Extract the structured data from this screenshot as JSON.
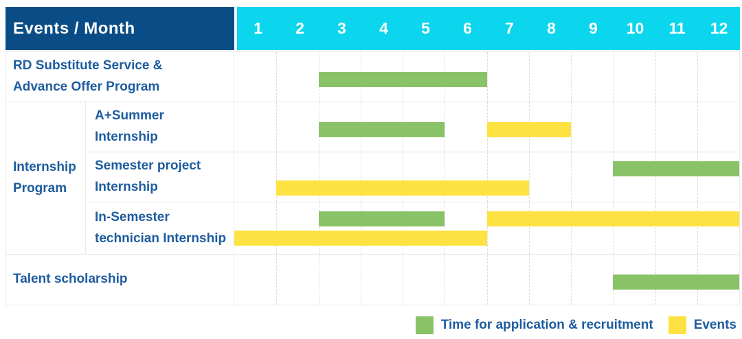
{
  "header": {
    "title": "Events / Month"
  },
  "chart_data": {
    "type": "gantt",
    "title": "Events / Month",
    "months": [
      "1",
      "2",
      "3",
      "4",
      "5",
      "6",
      "7",
      "8",
      "9",
      "10",
      "11",
      "12"
    ],
    "series_colors": {
      "application": "#8ac268",
      "events": "#fde242"
    },
    "group": {
      "label": "Internship Program",
      "label_lines": [
        "Internship",
        "Program"
      ],
      "row_indexes": [
        1,
        2,
        3
      ]
    },
    "rows": [
      {
        "label": "RD Substitute Service & Advance Offer Program",
        "label_lines": [
          "RD Substitute Service &",
          "Advance Offer Program"
        ],
        "lines": 1,
        "bars": [
          {
            "series": "application",
            "start_month": 3,
            "end_month": 6,
            "line": 0
          }
        ]
      },
      {
        "label": "A+Summer Internship",
        "label_lines": [
          "A+Summer",
          "Internship"
        ],
        "lines": 1,
        "bars": [
          {
            "series": "application",
            "start_month": 3,
            "end_month": 5,
            "line": 0
          },
          {
            "series": "events",
            "start_month": 7,
            "end_month": 8,
            "line": 0
          }
        ]
      },
      {
        "label": "Semester project Internship",
        "label_lines": [
          "Semester project",
          "Internship"
        ],
        "lines": 2,
        "bars": [
          {
            "series": "application",
            "start_month": 10,
            "end_month": 12,
            "line": 0
          },
          {
            "series": "events",
            "start_month": 2,
            "end_month": 7,
            "line": 1
          }
        ]
      },
      {
        "label": "In-Semester technician Internship",
        "label_lines": [
          "In-Semester",
          "technician Internship"
        ],
        "lines": 2,
        "bars": [
          {
            "series": "application",
            "start_month": 3,
            "end_month": 5,
            "line": 0
          },
          {
            "series": "events",
            "start_month": 7,
            "end_month": 12,
            "line": 0
          },
          {
            "series": "events",
            "start_month": 1,
            "end_month": 6,
            "line": 1
          }
        ]
      },
      {
        "label": "Talent scholarship",
        "label_lines": [
          "Talent scholarship"
        ],
        "lines": 1,
        "bars": [
          {
            "series": "application",
            "start_month": 10,
            "end_month": 12,
            "line": 0
          }
        ]
      }
    ]
  },
  "legend": {
    "items": [
      {
        "series": "application",
        "label": "Time for application & recruitment",
        "color": "#8ac268"
      },
      {
        "series": "events",
        "label": "Events",
        "color": "#fde242"
      }
    ]
  },
  "colors": {
    "header_bg": "#0a4d86",
    "months_bg": "#0bd6ee",
    "header_text": "#ffffff",
    "label_text": "#1d5c9f",
    "bar_green": "#8ac268",
    "bar_yellow": "#fde242",
    "grid_line": "#e8e8e8"
  }
}
